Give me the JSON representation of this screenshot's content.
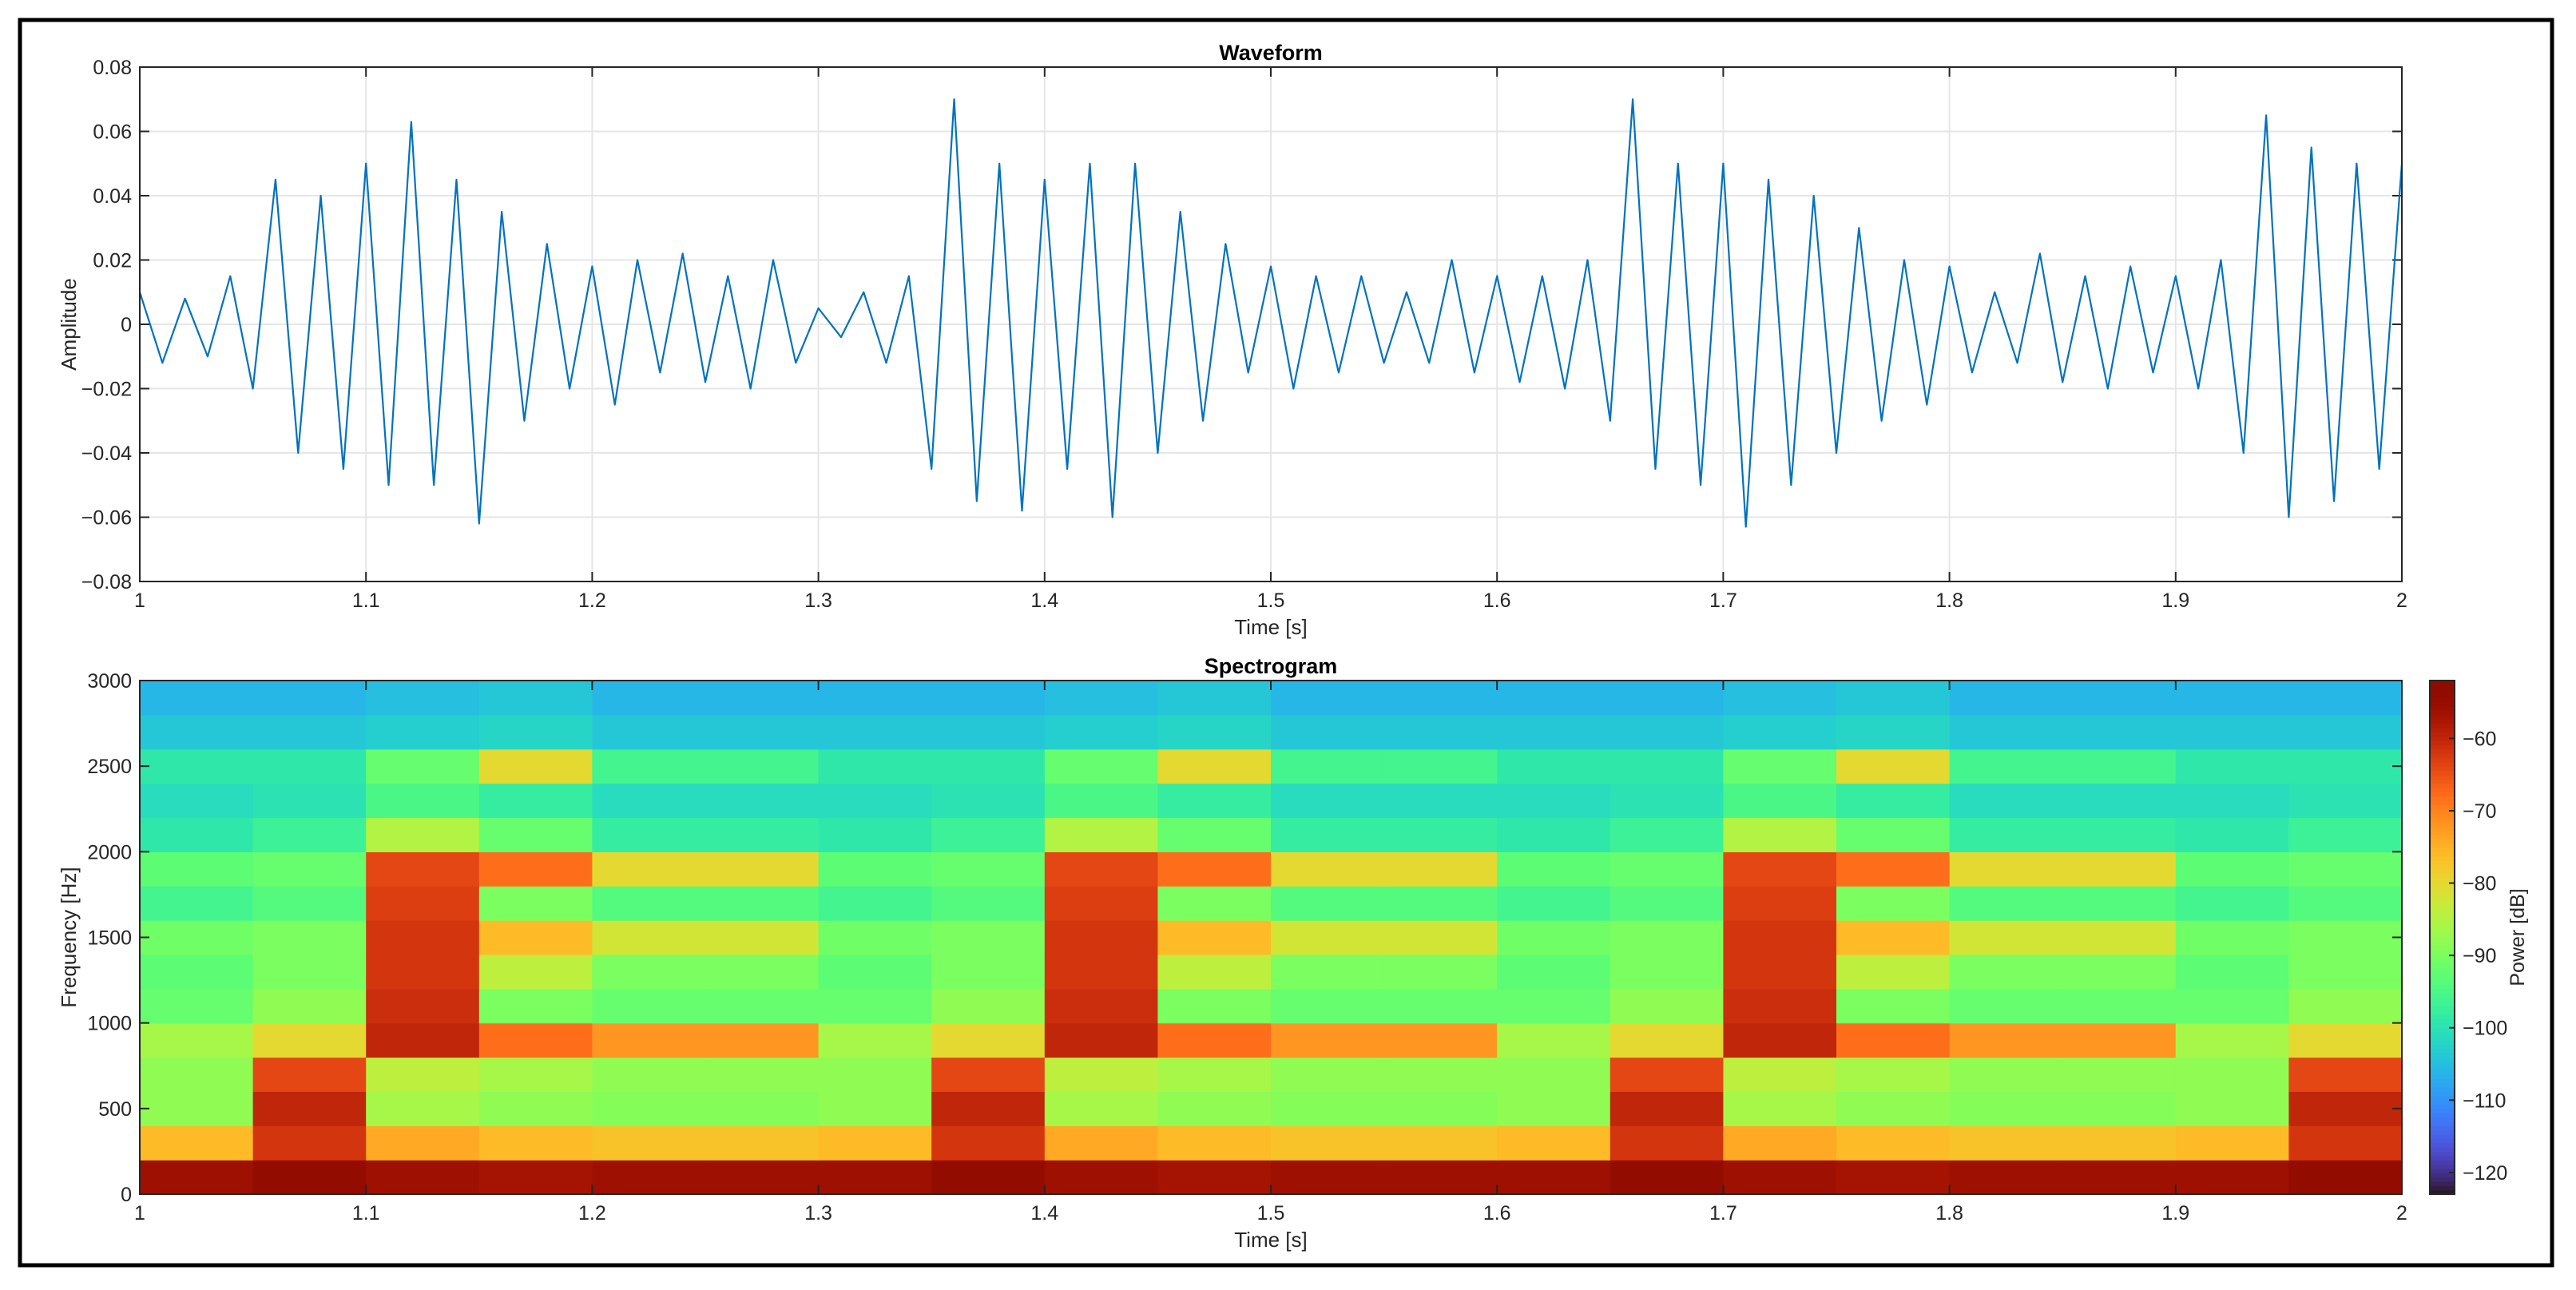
{
  "chart_data": [
    {
      "type": "line",
      "title": "Waveform",
      "x_label": "Time [s]",
      "y_label": "Amplitude",
      "x": [
        1.0,
        1.01,
        1.02,
        1.03,
        1.04,
        1.05,
        1.06,
        1.07,
        1.08,
        1.09,
        1.1,
        1.11,
        1.12,
        1.13,
        1.14,
        1.15,
        1.16,
        1.17,
        1.18,
        1.19,
        1.2,
        1.21,
        1.22,
        1.23,
        1.24,
        1.25,
        1.26,
        1.27,
        1.28,
        1.29,
        1.3,
        1.31,
        1.32,
        1.33,
        1.34,
        1.35,
        1.36,
        1.37,
        1.38,
        1.39,
        1.4,
        1.41,
        1.42,
        1.43,
        1.44,
        1.45,
        1.46,
        1.47,
        1.48,
        1.49,
        1.5,
        1.51,
        1.52,
        1.53,
        1.54,
        1.55,
        1.56,
        1.57,
        1.58,
        1.59,
        1.6,
        1.61,
        1.62,
        1.63,
        1.64,
        1.65,
        1.66,
        1.67,
        1.68,
        1.69,
        1.7,
        1.71,
        1.72,
        1.73,
        1.74,
        1.75,
        1.76,
        1.77,
        1.78,
        1.79,
        1.8,
        1.81,
        1.82,
        1.83,
        1.84,
        1.85,
        1.86,
        1.87,
        1.88,
        1.89,
        1.9,
        1.91,
        1.92,
        1.93,
        1.94,
        1.95,
        1.96,
        1.97,
        1.98,
        1.99,
        2.0
      ],
      "series": [
        {
          "color": "#0072bd",
          "values": [
            0.01,
            -0.012,
            0.008,
            -0.01,
            0.015,
            -0.02,
            0.045,
            -0.04,
            0.04,
            -0.045,
            0.05,
            -0.05,
            0.063,
            -0.05,
            0.045,
            -0.062,
            0.035,
            -0.03,
            0.025,
            -0.02,
            0.018,
            -0.025,
            0.02,
            -0.015,
            0.022,
            -0.018,
            0.015,
            -0.02,
            0.02,
            -0.012,
            0.005,
            -0.004,
            0.01,
            -0.012,
            0.015,
            -0.045,
            0.07,
            -0.055,
            0.05,
            -0.058,
            0.045,
            -0.045,
            0.05,
            -0.06,
            0.05,
            -0.04,
            0.035,
            -0.03,
            0.025,
            -0.015,
            0.018,
            -0.02,
            0.015,
            -0.015,
            0.015,
            -0.012,
            0.01,
            -0.012,
            0.02,
            -0.015,
            0.015,
            -0.018,
            0.015,
            -0.02,
            0.02,
            -0.03,
            0.07,
            -0.045,
            0.05,
            -0.05,
            0.05,
            -0.063,
            0.045,
            -0.05,
            0.04,
            -0.04,
            0.03,
            -0.03,
            0.02,
            -0.025,
            0.018,
            -0.015,
            0.01,
            -0.012,
            0.022,
            -0.018,
            0.015,
            -0.02,
            0.018,
            -0.015,
            0.015,
            -0.02,
            0.02,
            -0.04,
            0.065,
            -0.06,
            0.055,
            -0.055,
            0.05,
            -0.045,
            0.05
          ]
        }
      ],
      "xlim": [
        1,
        2
      ],
      "xticks": [
        1,
        1.1,
        1.2,
        1.3,
        1.4,
        1.5,
        1.6,
        1.7,
        1.8,
        1.9,
        2
      ],
      "ylim": [
        -0.08,
        0.08
      ],
      "yticks": [
        {
          "value": -0.08,
          "label": "−0.08"
        },
        {
          "value": -0.06,
          "label": "−0.06"
        },
        {
          "value": -0.04,
          "label": "−0.04"
        },
        {
          "value": -0.02,
          "label": "−0.02"
        },
        0,
        0.02,
        0.04,
        0.06,
        0.08
      ],
      "grid": true
    },
    {
      "type": "heatmap",
      "title": "Spectrogram",
      "x_label": "Time [s]",
      "y_label": "Frequency [Hz]",
      "colorbar_label": "Power [dB]",
      "colormap": "turbo",
      "x_bins": [
        1.0,
        1.05,
        1.1,
        1.15,
        1.2,
        1.25,
        1.3,
        1.35,
        1.4,
        1.45,
        1.5,
        1.55,
        1.6,
        1.65,
        1.7,
        1.75,
        1.8,
        1.85,
        1.9,
        1.95,
        2.0
      ],
      "y_bins": [
        0,
        200,
        400,
        600,
        800,
        1000,
        1200,
        1400,
        1600,
        1800,
        2000,
        2200,
        2400,
        2600,
        2800,
        3000
      ],
      "z": [
        [
          -56,
          -54,
          -56,
          -57,
          -56,
          -56,
          -56,
          -54,
          -56,
          -57,
          -56,
          -56,
          -56,
          -54,
          -56,
          -57,
          -56,
          -56,
          -56,
          -54
        ],
        [
          -76,
          -62,
          -74,
          -76,
          -77,
          -77,
          -76,
          -62,
          -74,
          -76,
          -77,
          -77,
          -76,
          -62,
          -74,
          -76,
          -77,
          -77,
          -76,
          -62
        ],
        [
          -88,
          -60,
          -86,
          -88,
          -89,
          -89,
          -88,
          -60,
          -86,
          -88,
          -89,
          -89,
          -88,
          -60,
          -86,
          -88,
          -89,
          -89,
          -88,
          -60
        ],
        [
          -88,
          -64,
          -84,
          -86,
          -88,
          -88,
          -88,
          -64,
          -84,
          -86,
          -88,
          -88,
          -88,
          -64,
          -84,
          -86,
          -88,
          -88,
          -88,
          -64
        ],
        [
          -86,
          -80,
          -60,
          -68,
          -72,
          -72,
          -86,
          -80,
          -60,
          -68,
          -72,
          -72,
          -86,
          -80,
          -60,
          -68,
          -72,
          -72,
          -86,
          -80
        ],
        [
          -92,
          -88,
          -61,
          -90,
          -92,
          -92,
          -92,
          -88,
          -61,
          -90,
          -92,
          -92,
          -92,
          -88,
          -61,
          -90,
          -92,
          -92,
          -92,
          -88
        ],
        [
          -93,
          -90,
          -62,
          -84,
          -90,
          -90,
          -93,
          -90,
          -62,
          -84,
          -90,
          -90,
          -93,
          -90,
          -62,
          -84,
          -90,
          -90,
          -93,
          -90
        ],
        [
          -91,
          -90,
          -62,
          -76,
          -82,
          -82,
          -91,
          -90,
          -62,
          -76,
          -82,
          -82,
          -91,
          -90,
          -62,
          -76,
          -82,
          -82,
          -91,
          -90
        ],
        [
          -96,
          -94,
          -63,
          -90,
          -94,
          -94,
          -96,
          -94,
          -63,
          -90,
          -94,
          -94,
          -96,
          -94,
          -63,
          -90,
          -94,
          -94,
          -96,
          -94
        ],
        [
          -93,
          -92,
          -64,
          -68,
          -80,
          -80,
          -93,
          -92,
          -64,
          -68,
          -80,
          -80,
          -93,
          -92,
          -64,
          -68,
          -80,
          -80,
          -93,
          -92
        ],
        [
          -99,
          -97,
          -85,
          -92,
          -98,
          -98,
          -99,
          -97,
          -85,
          -92,
          -98,
          -98,
          -99,
          -97,
          -85,
          -92,
          -98,
          -98,
          -99,
          -97
        ],
        [
          -101,
          -100,
          -95,
          -98,
          -101,
          -101,
          -101,
          -100,
          -95,
          -98,
          -101,
          -101,
          -101,
          -100,
          -95,
          -98,
          -101,
          -101,
          -101,
          -100
        ],
        [
          -99,
          -99,
          -92,
          -80,
          -96,
          -96,
          -99,
          -99,
          -92,
          -80,
          -96,
          -96,
          -99,
          -99,
          -92,
          -80,
          -96,
          -96,
          -99,
          -99
        ],
        [
          -104,
          -104,
          -103,
          -102,
          -104,
          -104,
          -104,
          -104,
          -103,
          -102,
          -104,
          -104,
          -104,
          -104,
          -103,
          -102,
          -104,
          -104,
          -104,
          -104
        ],
        [
          -106,
          -106,
          -105,
          -104,
          -106,
          -106,
          -106,
          -106,
          -105,
          -104,
          -106,
          -106,
          -106,
          -106,
          -105,
          -104,
          -106,
          -106,
          -106,
          -106
        ]
      ],
      "xlim": [
        1,
        2
      ],
      "xticks": [
        1,
        1.1,
        1.2,
        1.3,
        1.4,
        1.5,
        1.6,
        1.7,
        1.8,
        1.9,
        2
      ],
      "ylim": [
        0,
        3000
      ],
      "yticks": [
        0,
        500,
        1000,
        1500,
        2000,
        2500,
        3000
      ],
      "clim": [
        -123,
        -52
      ],
      "cticks": [
        {
          "value": -120,
          "label": "−120"
        },
        {
          "value": -110,
          "label": "−110"
        },
        {
          "value": -100,
          "label": "−100"
        },
        {
          "value": -90,
          "label": "−90"
        },
        {
          "value": -80,
          "label": "−80"
        },
        {
          "value": -70,
          "label": "−70"
        },
        {
          "value": -60,
          "label": "−60"
        }
      ],
      "grid": false
    }
  ]
}
